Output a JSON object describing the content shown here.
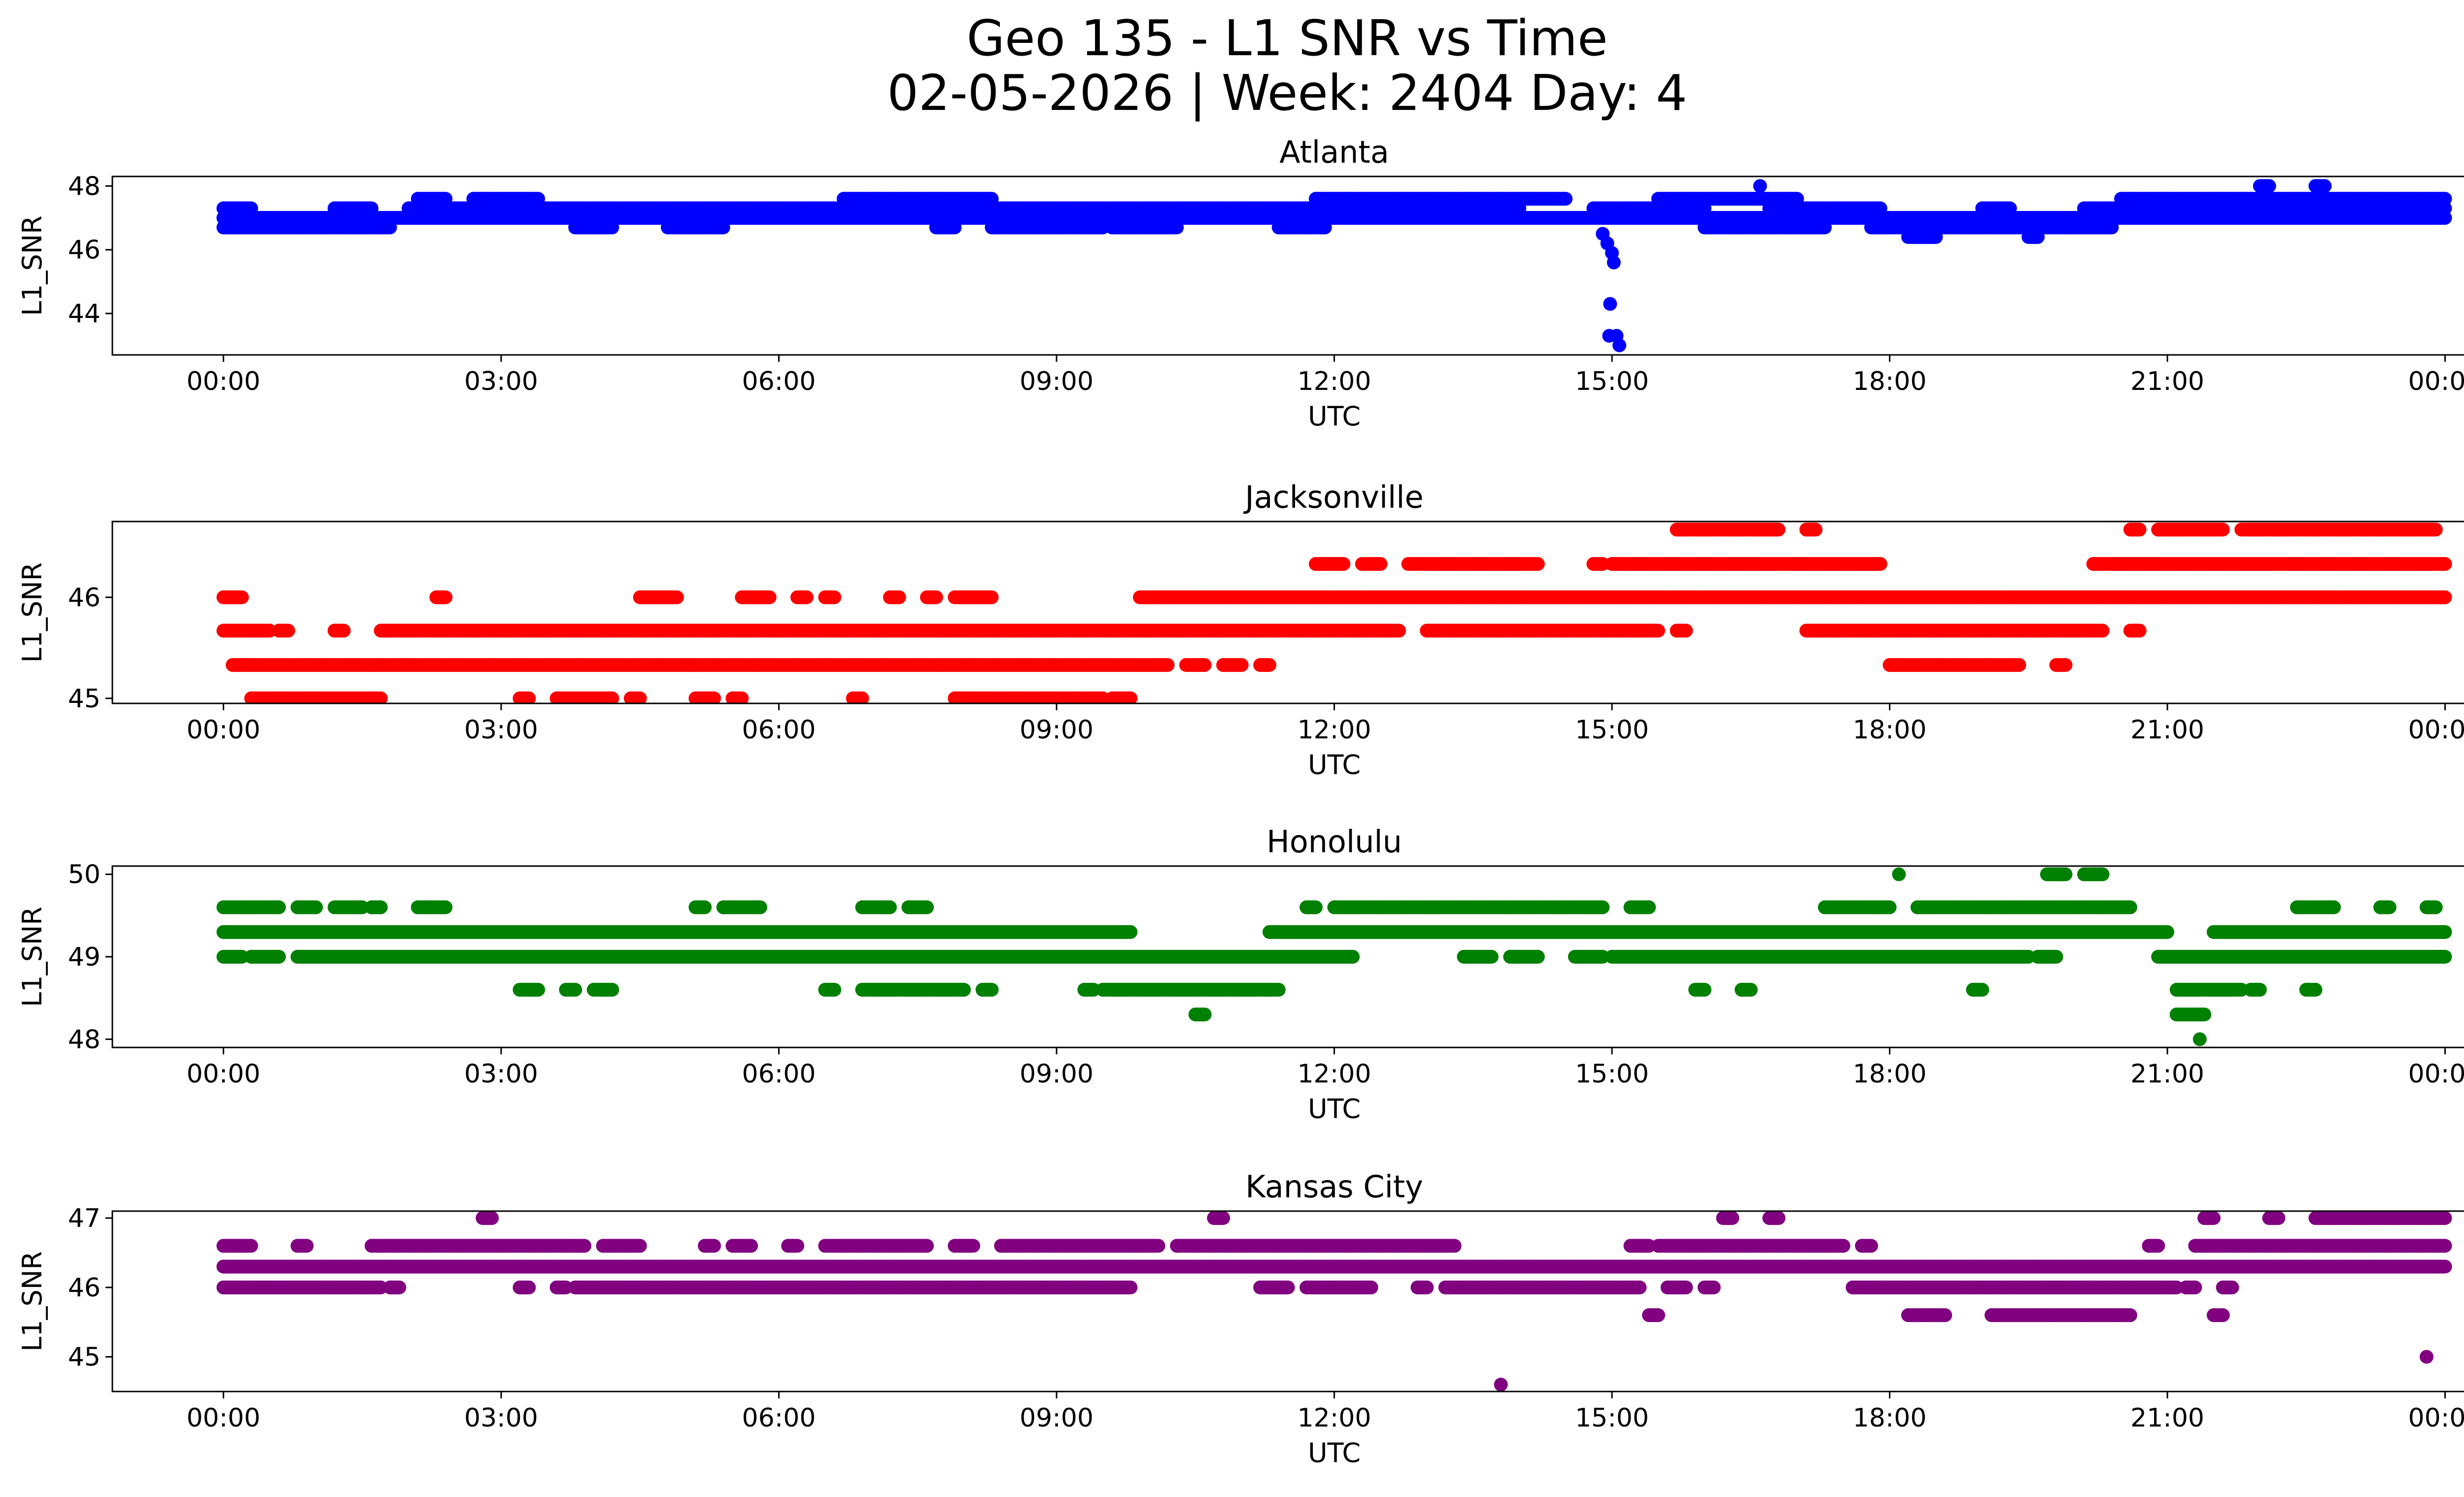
{
  "chart_data": {
    "type": "scatter",
    "title": "Geo 135 - L1 SNR vs Time",
    "subtitle": "02-05-2026 | Week: 2404 Day: 4",
    "x_ticks": [
      "00:00",
      "03:00",
      "06:00",
      "09:00",
      "12:00",
      "15:00",
      "18:00",
      "21:00",
      "00:00"
    ],
    "x_range_hours": [
      -1.2,
      25.2
    ],
    "panels": [
      {
        "title": "Atlanta",
        "xlabel": "UTC",
        "ylabel": "L1_SNR",
        "color": "#0000ff",
        "ylim": [
          42.7,
          48.3
        ],
        "yticks": [
          "44",
          "46",
          "48"
        ],
        "levels": [
          {
            "y": 47.0,
            "segments": [
              [
                0,
                24
              ]
            ]
          },
          {
            "y": 46.7,
            "segments": [
              [
                0,
                1.8
              ],
              [
                3.8,
                4.2
              ],
              [
                4.8,
                5.4
              ],
              [
                7.7,
                7.9
              ],
              [
                8.3,
                9.5
              ],
              [
                9.6,
                10.3
              ],
              [
                11.4,
                11.9
              ],
              [
                16.0,
                17.3
              ],
              [
                17.8,
                20.4
              ]
            ]
          },
          {
            "y": 47.3,
            "segments": [
              [
                0,
                0.3
              ],
              [
                1.2,
                1.6
              ],
              [
                2.0,
                14.0
              ],
              [
                14.8,
                16.0
              ],
              [
                16.7,
                17.9
              ],
              [
                19.0,
                19.3
              ],
              [
                20.1,
                24
              ]
            ]
          },
          {
            "y": 47.6,
            "segments": [
              [
                2.1,
                2.4
              ],
              [
                2.7,
                3.4
              ],
              [
                6.7,
                8.3
              ],
              [
                11.8,
                14.5
              ],
              [
                15.5,
                17.0
              ],
              [
                20.5,
                24
              ]
            ]
          },
          {
            "y": 46.4,
            "segments": [
              [
                18.2,
                18.5
              ],
              [
                19.5,
                19.6
              ]
            ]
          },
          {
            "y": 48.0,
            "segments": [
              [
                16.6,
                16.6
              ],
              [
                22.0,
                22.1
              ],
              [
                22.6,
                22.7
              ]
            ]
          }
        ],
        "outliers": [
          {
            "x": 14.9,
            "y": 46.5
          },
          {
            "x": 14.95,
            "y": 46.2
          },
          {
            "x": 15.0,
            "y": 45.9
          },
          {
            "x": 15.02,
            "y": 45.6
          },
          {
            "x": 14.98,
            "y": 44.3
          },
          {
            "x": 14.97,
            "y": 43.3
          },
          {
            "x": 15.05,
            "y": 43.3
          },
          {
            "x": 15.08,
            "y": 43.0
          }
        ]
      },
      {
        "title": "Jacksonville",
        "xlabel": "UTC",
        "ylabel": "L1_SNR",
        "color": "#ff0000",
        "ylim": [
          44.95,
          46.75
        ],
        "yticks": [
          "45",
          "46"
        ],
        "levels": [
          {
            "y": 45.33,
            "segments": [
              [
                0.1,
                10.2
              ],
              [
                10.4,
                10.6
              ],
              [
                10.8,
                11.0
              ],
              [
                11.2,
                11.3
              ],
              [
                18.0,
                19.4
              ],
              [
                19.8,
                19.9
              ]
            ]
          },
          {
            "y": 45.67,
            "segments": [
              [
                0,
                0.5
              ],
              [
                0.6,
                0.7
              ],
              [
                1.2,
                1.3
              ],
              [
                1.7,
                12.7
              ],
              [
                13.0,
                15.5
              ],
              [
                15.7,
                15.8
              ],
              [
                17.1,
                20.3
              ],
              [
                20.6,
                20.7
              ]
            ]
          },
          {
            "y": 46.0,
            "segments": [
              [
                0,
                0.2
              ],
              [
                2.3,
                2.4
              ],
              [
                4.5,
                4.9
              ],
              [
                5.6,
                5.9
              ],
              [
                6.2,
                6.3
              ],
              [
                6.5,
                6.6
              ],
              [
                7.2,
                7.3
              ],
              [
                7.6,
                7.7
              ],
              [
                7.9,
                8.3
              ],
              [
                9.9,
                24
              ]
            ]
          },
          {
            "y": 46.33,
            "segments": [
              [
                11.8,
                12.1
              ],
              [
                12.3,
                12.5
              ],
              [
                12.8,
                14.2
              ],
              [
                14.8,
                14.9
              ],
              [
                15.0,
                17.9
              ],
              [
                20.2,
                24
              ]
            ]
          },
          {
            "y": 46.67,
            "segments": [
              [
                15.7,
                16.8
              ],
              [
                17.1,
                17.2
              ],
              [
                20.6,
                20.7
              ],
              [
                20.9,
                21.6
              ],
              [
                21.8,
                23.9
              ]
            ]
          },
          {
            "y": 45.0,
            "segments": [
              [
                0.3,
                1.7
              ],
              [
                3.2,
                3.3
              ],
              [
                3.6,
                4.2
              ],
              [
                4.4,
                4.5
              ],
              [
                5.1,
                5.3
              ],
              [
                5.5,
                5.6
              ],
              [
                6.8,
                6.9
              ],
              [
                7.9,
                9.5
              ],
              [
                9.6,
                9.8
              ]
            ]
          }
        ],
        "outliers": []
      },
      {
        "title": "Honolulu",
        "xlabel": "UTC",
        "ylabel": "L1_SNR",
        "color": "#008000",
        "ylim": [
          47.9,
          50.1
        ],
        "yticks": [
          "48",
          "49",
          "50"
        ],
        "levels": [
          {
            "y": 49.3,
            "segments": [
              [
                0,
                9.8
              ],
              [
                11.3,
                21.0
              ],
              [
                21.5,
                24
              ]
            ]
          },
          {
            "y": 49.0,
            "segments": [
              [
                0,
                0.2
              ],
              [
                0.3,
                0.6
              ],
              [
                0.8,
                12.2
              ],
              [
                13.4,
                13.7
              ],
              [
                13.9,
                14.2
              ],
              [
                14.6,
                14.9
              ],
              [
                15.0,
                19.5
              ],
              [
                19.6,
                19.8
              ],
              [
                20.9,
                24
              ]
            ]
          },
          {
            "y": 49.6,
            "segments": [
              [
                0,
                0.6
              ],
              [
                0.8,
                1.0
              ],
              [
                1.2,
                1.5
              ],
              [
                1.6,
                1.7
              ],
              [
                2.1,
                2.4
              ],
              [
                5.1,
                5.2
              ],
              [
                5.4,
                5.8
              ],
              [
                6.9,
                7.2
              ],
              [
                7.4,
                7.6
              ],
              [
                11.7,
                11.8
              ],
              [
                12.0,
                14.9
              ],
              [
                15.2,
                15.4
              ],
              [
                17.3,
                18.0
              ],
              [
                18.3,
                20.6
              ],
              [
                22.4,
                22.8
              ],
              [
                23.3,
                23.4
              ],
              [
                23.8,
                23.9
              ]
            ]
          },
          {
            "y": 48.6,
            "segments": [
              [
                3.2,
                3.4
              ],
              [
                3.7,
                3.8
              ],
              [
                4.0,
                4.2
              ],
              [
                6.5,
                6.6
              ],
              [
                6.9,
                8.0
              ],
              [
                8.2,
                8.3
              ],
              [
                9.3,
                9.4
              ],
              [
                9.5,
                11.4
              ],
              [
                15.9,
                16.0
              ],
              [
                16.4,
                16.5
              ],
              [
                18.9,
                19.0
              ],
              [
                21.1,
                21.8
              ],
              [
                21.9,
                22.0
              ],
              [
                22.5,
                22.6
              ]
            ]
          },
          {
            "y": 48.3,
            "segments": [
              [
                10.5,
                10.6
              ],
              [
                21.1,
                21.4
              ]
            ]
          },
          {
            "y": 50.0,
            "segments": [
              [
                18.1,
                18.1
              ],
              [
                19.7,
                19.9
              ],
              [
                20.1,
                20.3
              ]
            ]
          }
        ],
        "outliers": [
          {
            "x": 21.35,
            "y": 48.0
          }
        ]
      },
      {
        "title": "Kansas City",
        "xlabel": "UTC",
        "ylabel": "L1_SNR",
        "color": "#800080",
        "ylim": [
          44.5,
          47.1
        ],
        "yticks": [
          "45",
          "46",
          "47"
        ],
        "levels": [
          {
            "y": 46.3,
            "segments": [
              [
                0,
                24
              ]
            ]
          },
          {
            "y": 46.0,
            "segments": [
              [
                0,
                1.7
              ],
              [
                1.8,
                1.9
              ],
              [
                3.2,
                3.3
              ],
              [
                3.6,
                3.7
              ],
              [
                3.8,
                9.8
              ],
              [
                11.2,
                11.5
              ],
              [
                11.7,
                12.4
              ],
              [
                12.9,
                13.0
              ],
              [
                13.2,
                15.3
              ],
              [
                15.6,
                15.8
              ],
              [
                16.0,
                16.1
              ],
              [
                17.6,
                21.1
              ],
              [
                21.2,
                21.3
              ],
              [
                21.6,
                21.7
              ]
            ]
          },
          {
            "y": 46.6,
            "segments": [
              [
                0,
                0.3
              ],
              [
                0.8,
                0.9
              ],
              [
                1.6,
                3.9
              ],
              [
                4.1,
                4.5
              ],
              [
                5.2,
                5.3
              ],
              [
                5.5,
                5.7
              ],
              [
                6.1,
                6.2
              ],
              [
                6.5,
                7.6
              ],
              [
                7.9,
                8.1
              ],
              [
                8.4,
                10.1
              ],
              [
                10.3,
                13.3
              ],
              [
                15.2,
                15.4
              ],
              [
                15.5,
                17.5
              ],
              [
                17.7,
                17.8
              ],
              [
                20.8,
                20.9
              ],
              [
                21.3,
                24
              ]
            ]
          },
          {
            "y": 45.6,
            "segments": [
              [
                15.4,
                15.5
              ],
              [
                18.2,
                18.6
              ],
              [
                19.1,
                20.6
              ],
              [
                21.5,
                21.6
              ]
            ]
          },
          {
            "y": 47.0,
            "segments": [
              [
                2.8,
                2.9
              ],
              [
                10.7,
                10.8
              ],
              [
                16.2,
                16.3
              ],
              [
                16.7,
                16.8
              ],
              [
                21.4,
                21.5
              ],
              [
                22.1,
                22.2
              ],
              [
                22.6,
                24
              ]
            ]
          }
        ],
        "outliers": [
          {
            "x": 13.8,
            "y": 44.6
          },
          {
            "x": 23.8,
            "y": 45.0
          }
        ]
      }
    ]
  }
}
